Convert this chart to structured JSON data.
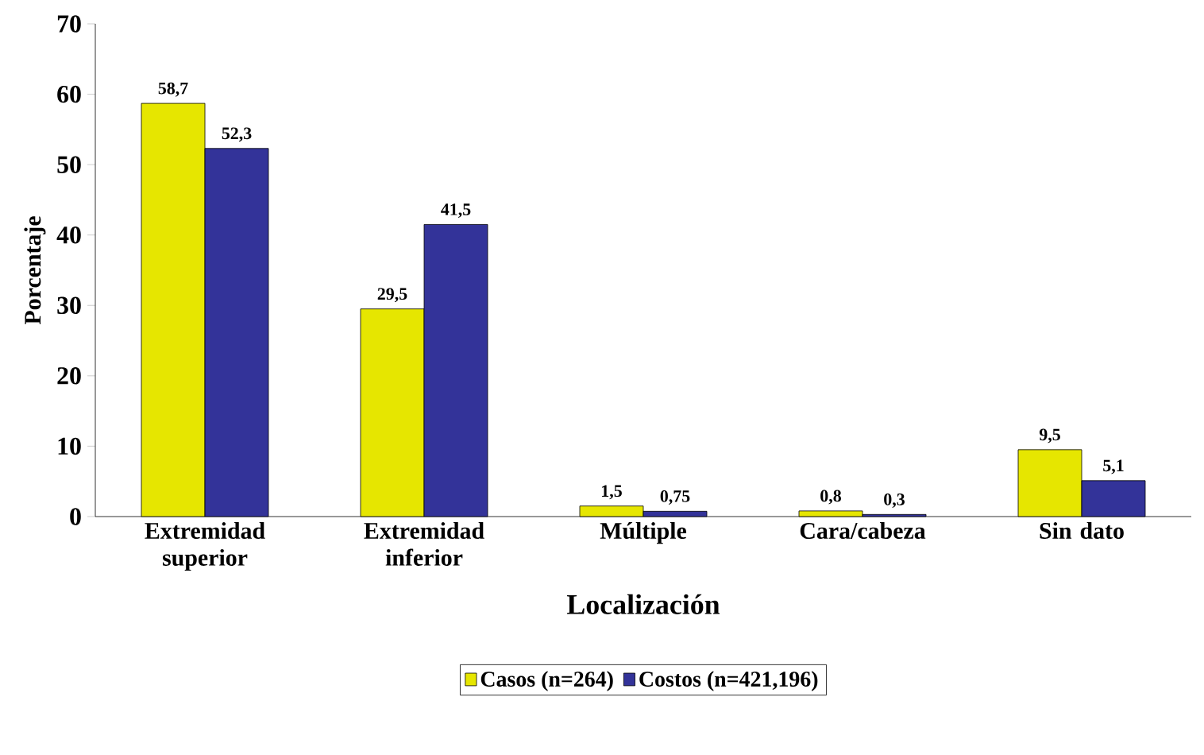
{
  "chart_data": {
    "type": "bar",
    "xlabel": "Localización",
    "ylabel": "Porcentaje",
    "categories": [
      "Extremidad superior",
      "Extremidad inferior",
      "Múltiple",
      "Cara/cabeza",
      "Sin dato"
    ],
    "series": [
      {
        "name": "Casos (n=264)",
        "color": "#e6e600",
        "values": [
          58.7,
          29.5,
          1.5,
          0.8,
          9.5
        ],
        "value_labels": [
          "58,7",
          "29,5",
          "1,5",
          "0,8",
          "9,5"
        ]
      },
      {
        "name": "Costos (n=421,196)",
        "color": "#333399",
        "values": [
          52.3,
          41.5,
          0.75,
          0.3,
          5.1
        ],
        "value_labels": [
          "52,3",
          "41,5",
          "0,75",
          "0,3",
          "5,1"
        ]
      }
    ],
    "ylim": [
      0,
      70
    ],
    "yticks": [
      0,
      10,
      20,
      30,
      40,
      50,
      60,
      70
    ],
    "grid": false,
    "legend": "bottom"
  }
}
